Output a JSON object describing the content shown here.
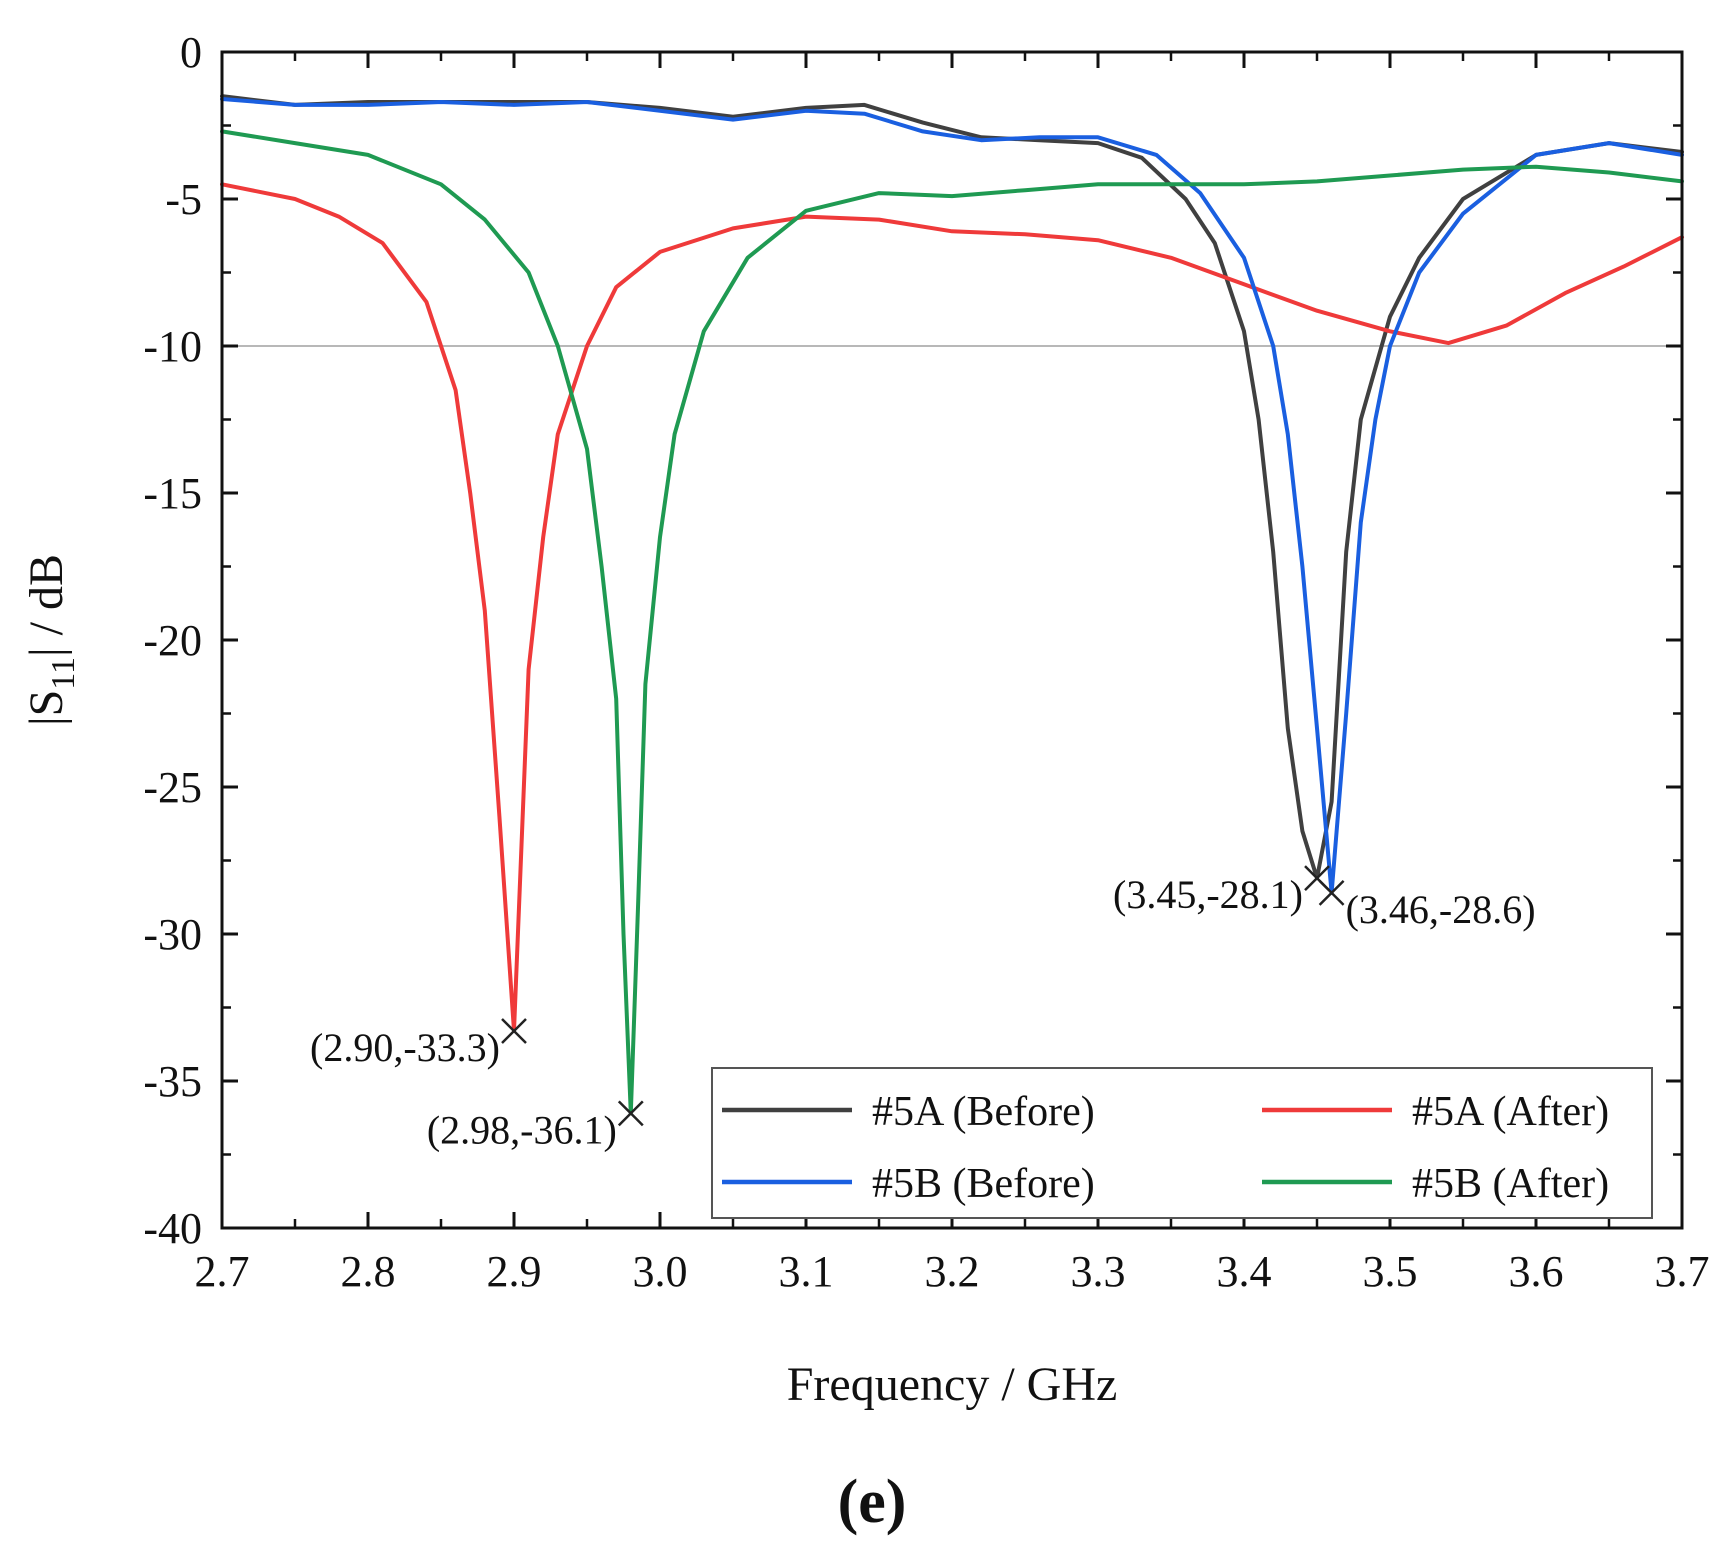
{
  "chart_data": {
    "type": "line",
    "xlabel": "Frequency / GHz",
    "ylabel_main": "|S",
    "ylabel_sub": "11",
    "ylabel_rest": "| / dB",
    "xlim": [
      2.7,
      3.7
    ],
    "ylim": [
      -40,
      0
    ],
    "xticks": [
      "2.7",
      "2.8",
      "2.9",
      "3.0",
      "3.1",
      "3.2",
      "3.3",
      "3.4",
      "3.5",
      "3.6",
      "3.7"
    ],
    "yticks": [
      "0",
      "-5",
      "-10",
      "-15",
      "-20",
      "-25",
      "-30",
      "-35",
      "-40"
    ],
    "reference_line_y": -10,
    "panel_label": "(e)",
    "series": [
      {
        "name": "#5A (Before)",
        "color": "#404040",
        "x": [
          2.7,
          2.75,
          2.8,
          2.85,
          2.9,
          2.95,
          3.0,
          3.05,
          3.1,
          3.14,
          3.18,
          3.22,
          3.26,
          3.3,
          3.33,
          3.36,
          3.38,
          3.4,
          3.41,
          3.42,
          3.43,
          3.44,
          3.45,
          3.46,
          3.47,
          3.48,
          3.5,
          3.52,
          3.55,
          3.6,
          3.65,
          3.7
        ],
        "y": [
          -1.5,
          -1.8,
          -1.7,
          -1.7,
          -1.7,
          -1.7,
          -1.9,
          -2.2,
          -1.9,
          -1.8,
          -2.4,
          -2.9,
          -3.0,
          -3.1,
          -3.6,
          -5.0,
          -6.5,
          -9.5,
          -12.5,
          -17.0,
          -23.0,
          -26.5,
          -28.1,
          -25.5,
          -17.0,
          -12.5,
          -9.0,
          -7.0,
          -5.0,
          -3.5,
          -3.1,
          -3.4
        ]
      },
      {
        "name": "#5A (After)",
        "color": "#ef3a3a",
        "x": [
          2.7,
          2.75,
          2.78,
          2.81,
          2.84,
          2.86,
          2.87,
          2.88,
          2.89,
          2.9,
          2.91,
          2.92,
          2.93,
          2.95,
          2.97,
          3.0,
          3.05,
          3.1,
          3.15,
          3.2,
          3.25,
          3.3,
          3.35,
          3.4,
          3.45,
          3.5,
          3.54,
          3.58,
          3.62,
          3.66,
          3.7
        ],
        "y": [
          -4.5,
          -5.0,
          -5.6,
          -6.5,
          -8.5,
          -11.5,
          -15.0,
          -19.0,
          -26.0,
          -33.3,
          -21.0,
          -16.5,
          -13.0,
          -10.0,
          -8.0,
          -6.8,
          -6.0,
          -5.6,
          -5.7,
          -6.1,
          -6.2,
          -6.4,
          -7.0,
          -7.9,
          -8.8,
          -9.5,
          -9.9,
          -9.3,
          -8.2,
          -7.3,
          -6.3
        ]
      },
      {
        "name": "#5B (Before)",
        "color": "#1a5fe0",
        "x": [
          2.7,
          2.75,
          2.8,
          2.85,
          2.9,
          2.95,
          3.0,
          3.05,
          3.1,
          3.14,
          3.18,
          3.22,
          3.26,
          3.3,
          3.34,
          3.37,
          3.4,
          3.42,
          3.43,
          3.44,
          3.45,
          3.46,
          3.47,
          3.48,
          3.49,
          3.5,
          3.52,
          3.55,
          3.6,
          3.65,
          3.7
        ],
        "y": [
          -1.6,
          -1.8,
          -1.8,
          -1.7,
          -1.8,
          -1.7,
          -2.0,
          -2.3,
          -2.0,
          -2.1,
          -2.7,
          -3.0,
          -2.9,
          -2.9,
          -3.5,
          -4.8,
          -7.0,
          -10.0,
          -13.0,
          -17.5,
          -23.0,
          -28.6,
          -22.5,
          -16.0,
          -12.5,
          -10.0,
          -7.5,
          -5.5,
          -3.5,
          -3.1,
          -3.5
        ]
      },
      {
        "name": "#5B (After)",
        "color": "#1f9a52",
        "x": [
          2.7,
          2.75,
          2.8,
          2.85,
          2.88,
          2.91,
          2.93,
          2.95,
          2.96,
          2.97,
          2.975,
          2.98,
          2.985,
          2.99,
          3.0,
          3.01,
          3.03,
          3.06,
          3.1,
          3.15,
          3.2,
          3.25,
          3.3,
          3.35,
          3.4,
          3.45,
          3.5,
          3.55,
          3.6,
          3.65,
          3.7
        ],
        "y": [
          -2.7,
          -3.1,
          -3.5,
          -4.5,
          -5.7,
          -7.5,
          -10.0,
          -13.5,
          -17.5,
          -22.0,
          -30.0,
          -36.1,
          -29.0,
          -21.5,
          -16.5,
          -13.0,
          -9.5,
          -7.0,
          -5.4,
          -4.8,
          -4.9,
          -4.7,
          -4.5,
          -4.5,
          -4.5,
          -4.4,
          -4.2,
          -4.0,
          -3.9,
          -4.1,
          -4.4
        ]
      }
    ],
    "annotations": [
      {
        "text": "(2.90,-33.3)",
        "x": 2.9,
        "y": -33.3,
        "side": "left"
      },
      {
        "text": "(2.98,-36.1)",
        "x": 2.98,
        "y": -36.1,
        "side": "left"
      },
      {
        "text": "(3.45,-28.1)",
        "x": 3.45,
        "y": -28.1,
        "side": "left"
      },
      {
        "text": "(3.46,-28.6)",
        "x": 3.46,
        "y": -28.6,
        "side": "right"
      }
    ],
    "legend_position": "bottom-right"
  }
}
